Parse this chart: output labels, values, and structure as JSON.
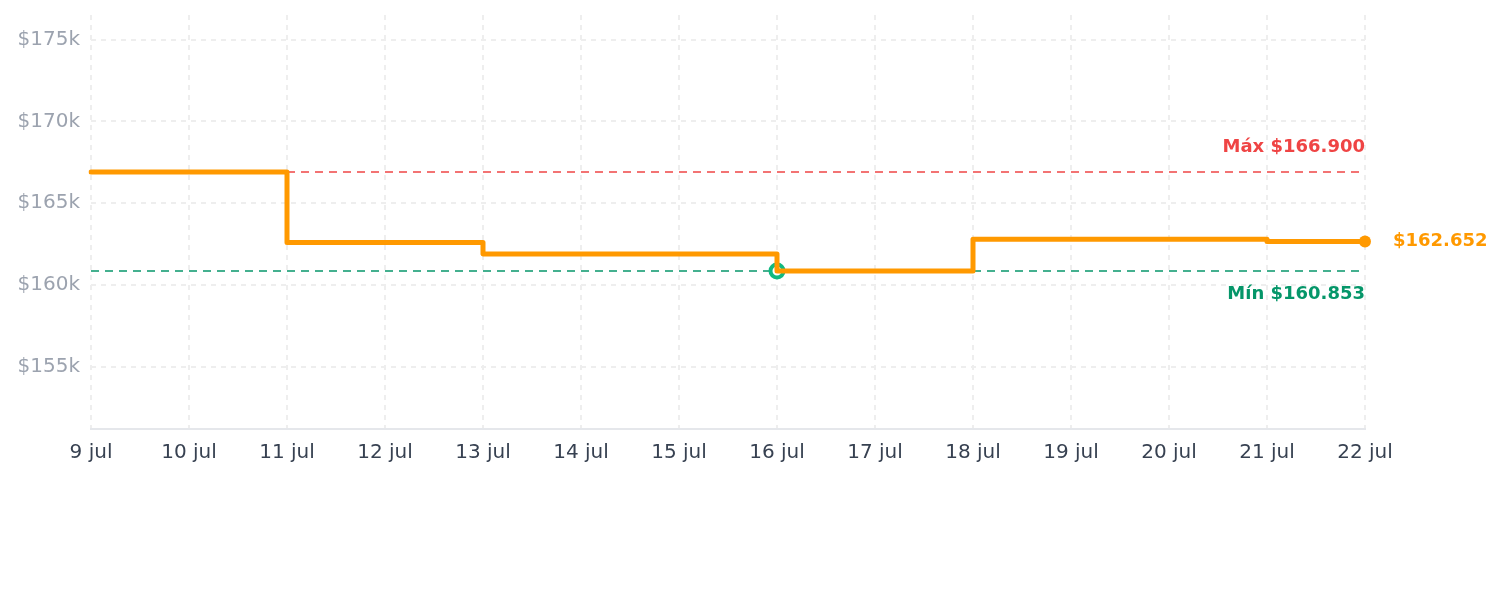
{
  "chart_data": {
    "type": "step",
    "categories": [
      "9 jul",
      "10 jul",
      "11 jul",
      "12 jul",
      "13 jul",
      "14 jul",
      "15 jul",
      "16 jul",
      "17 jul",
      "18 jul",
      "19 jul",
      "20 jul",
      "21 jul",
      "22 jul"
    ],
    "series": [
      {
        "color": "#ff9900",
        "values": [
          166900,
          166900,
          162600,
          162600,
          161900,
          161900,
          161900,
          160853,
          160853,
          162800,
          162800,
          162800,
          162652,
          162652
        ],
        "marker": "none"
      },
      {
        "type": "scatter",
        "x": [
          "16 jul"
        ],
        "values": [
          160853
        ],
        "color": "#10b981",
        "marker": "circle"
      },
      {
        "type": "scatter",
        "x": [
          "22 jul"
        ],
        "values": [
          162652
        ],
        "color": "#ff9900",
        "marker": "circle",
        "value_labels": [
          "$162.652"
        ]
      }
    ],
    "ylim": [
      151200,
      176500
    ],
    "yticks": [
      {
        "value": 155000,
        "label": "$155k"
      },
      {
        "value": 160000,
        "label": "$160k"
      },
      {
        "value": 165000,
        "label": "$165k"
      },
      {
        "value": 170000,
        "label": "$170k"
      },
      {
        "value": 175000,
        "label": "$175k"
      }
    ],
    "ref_lines": [
      {
        "axis": "y",
        "value": 166900,
        "label": "Máx $166.900",
        "color": "#ef4444",
        "line_style": "dashed"
      },
      {
        "axis": "y",
        "value": 160853,
        "label": "Mín $160.853",
        "color": "#059669",
        "line_style": "dashed"
      }
    ],
    "grid": true,
    "line_style": "solid"
  }
}
